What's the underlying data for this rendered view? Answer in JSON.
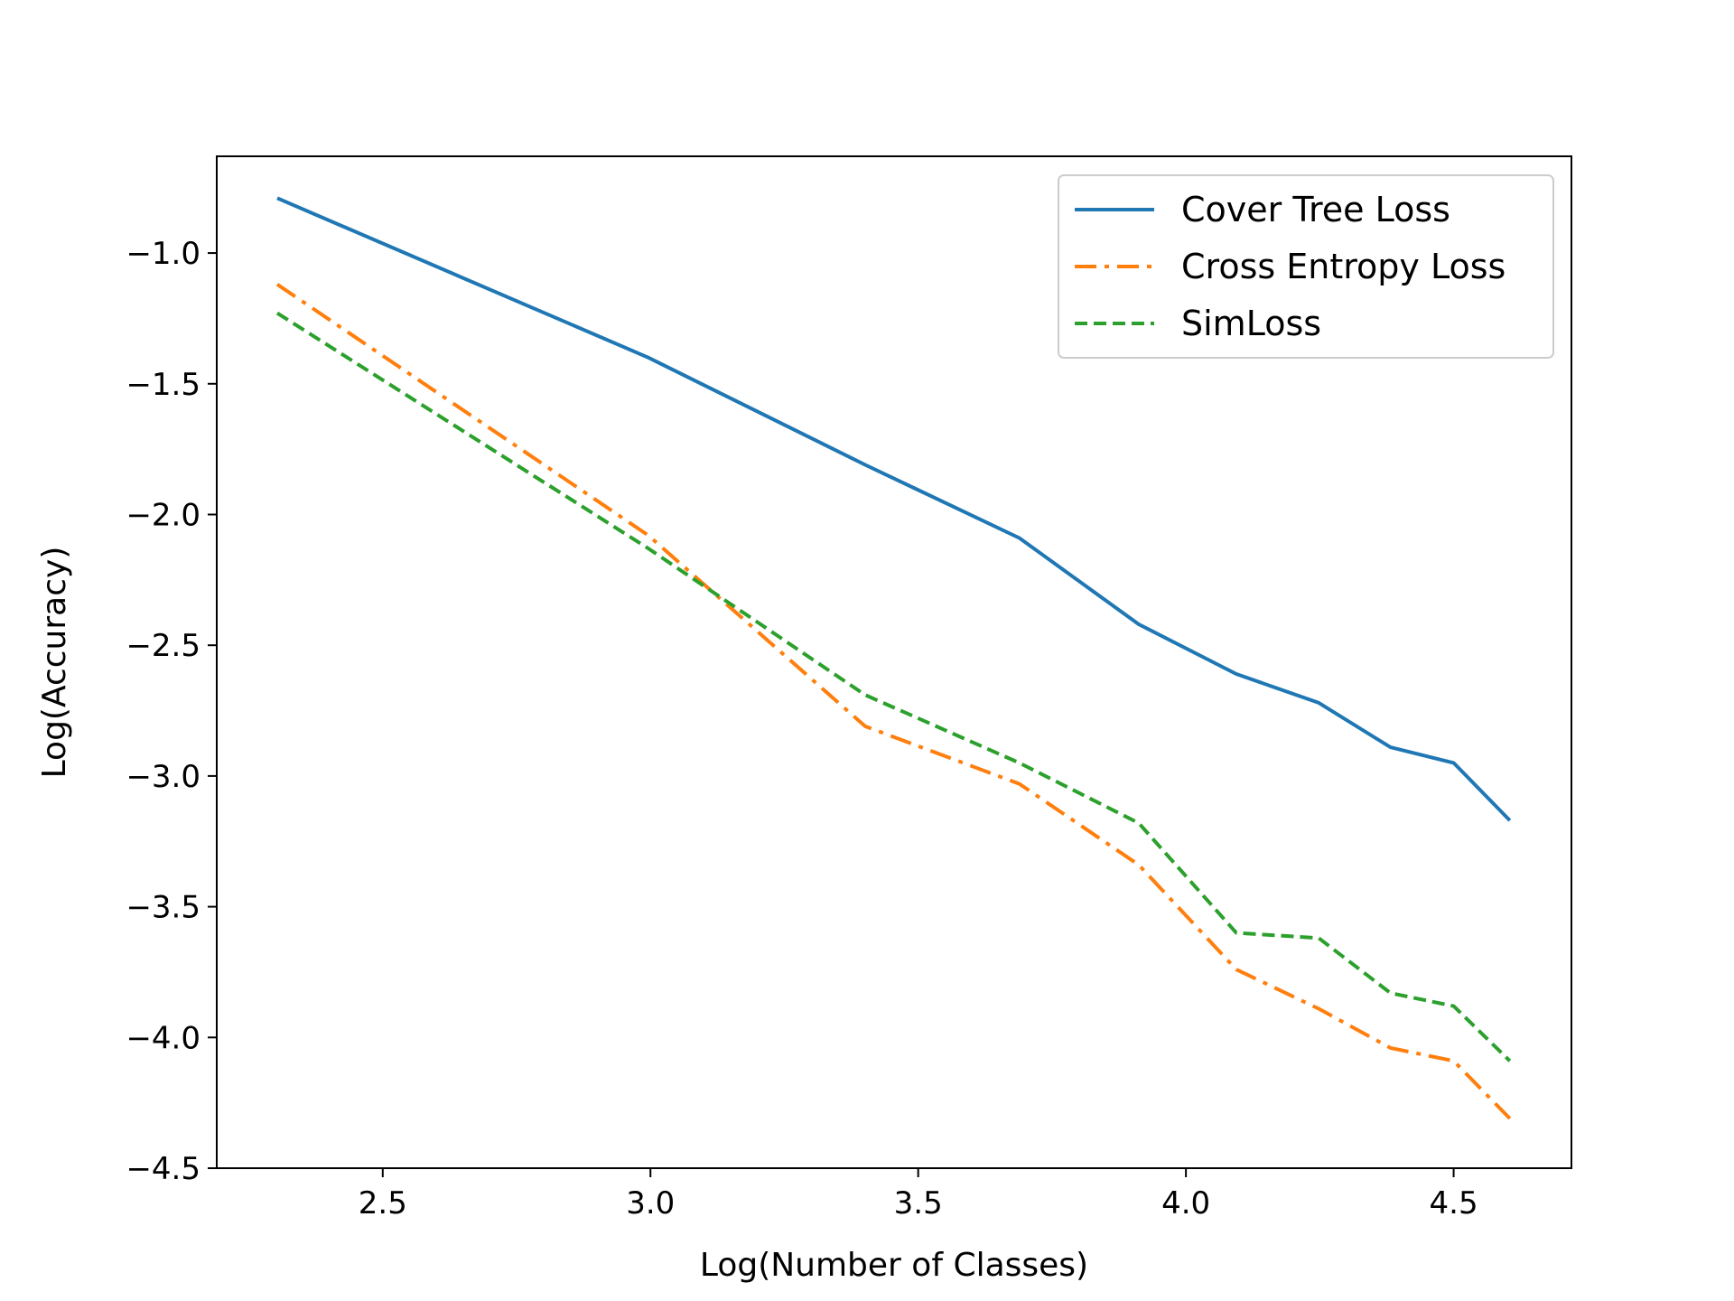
{
  "chart_data": {
    "type": "line",
    "title": "",
    "xlabel": "Log(Number of Classes)",
    "ylabel": "Log(Accuracy)",
    "xlim": [
      2.19,
      4.72
    ],
    "ylim": [
      -4.5,
      -0.63
    ],
    "x_ticks": [
      2.5,
      3.0,
      3.5,
      4.0,
      4.5
    ],
    "y_ticks": [
      -1.0,
      -1.5,
      -2.0,
      -2.5,
      -3.0,
      -3.5,
      -4.0,
      -4.5
    ],
    "x_tick_labels": [
      "2.5",
      "3.0",
      "3.5",
      "4.0",
      "4.5"
    ],
    "y_tick_labels": [
      "−1.0",
      "−1.5",
      "−2.0",
      "−2.5",
      "−3.0",
      "−3.5",
      "−4.0",
      "−4.5"
    ],
    "grid": false,
    "legend_position": "top-right",
    "series": [
      {
        "name": "Cover Tree Loss",
        "color": "#1f77b4",
        "style": "solid",
        "x": [
          2.303,
          2.996,
          3.401,
          3.689,
          3.912,
          4.094,
          4.248,
          4.382,
          4.5,
          4.605
        ],
        "y": [
          -0.79,
          -1.4,
          -1.81,
          -2.09,
          -2.42,
          -2.61,
          -2.72,
          -2.89,
          -2.95,
          -3.17
        ]
      },
      {
        "name": "Cross Entropy Loss",
        "color": "#ff7f0e",
        "style": "dashdot",
        "x": [
          2.303,
          2.996,
          3.401,
          3.689,
          3.912,
          4.094,
          4.248,
          4.382,
          4.5,
          4.605
        ],
        "y": [
          -1.12,
          -2.08,
          -2.81,
          -3.03,
          -3.34,
          -3.74,
          -3.89,
          -4.04,
          -4.09,
          -4.31
        ]
      },
      {
        "name": "SimLoss",
        "color": "#2ca02c",
        "style": "dashed",
        "x": [
          2.303,
          2.996,
          3.401,
          3.689,
          3.912,
          4.094,
          4.248,
          4.382,
          4.5,
          4.605
        ],
        "y": [
          -1.23,
          -2.13,
          -2.69,
          -2.95,
          -3.18,
          -3.6,
          -3.62,
          -3.83,
          -3.88,
          -4.09
        ]
      }
    ]
  }
}
